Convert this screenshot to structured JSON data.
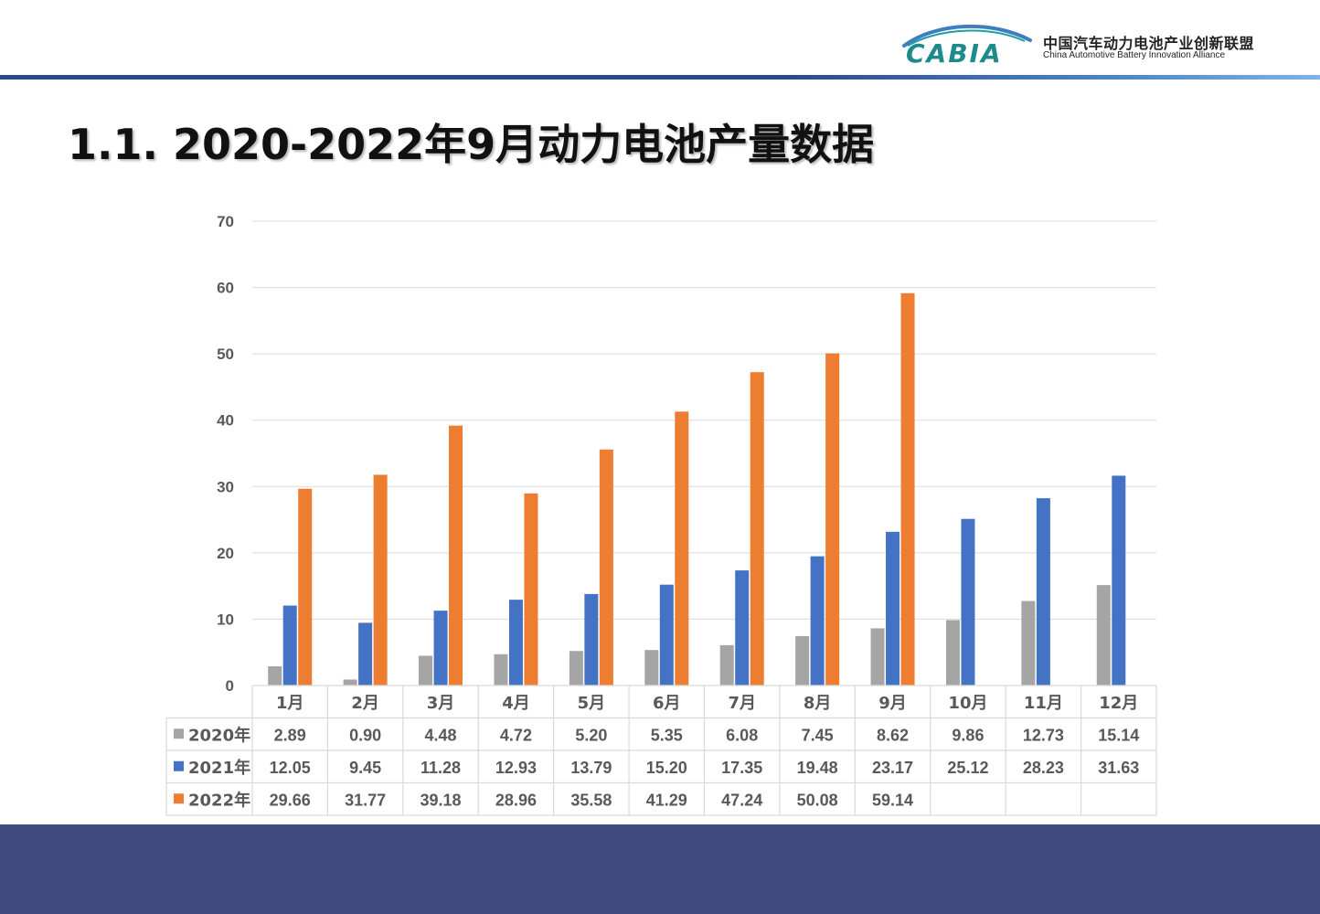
{
  "header": {
    "logo_text": "CABIA",
    "org_name_cn": "中国汽车动力电池产业创新联盟",
    "org_name_en": "China Automotive Battery Innovation Alliance"
  },
  "page": {
    "title": "1.1. 2020-2022年9月动力电池产量数据"
  },
  "chart_data": {
    "type": "bar",
    "categories": [
      "1月",
      "2月",
      "3月",
      "4月",
      "5月",
      "6月",
      "7月",
      "8月",
      "9月",
      "10月",
      "11月",
      "12月"
    ],
    "series": [
      {
        "name": "2020年",
        "color": "#a5a5a5",
        "values": [
          2.89,
          0.9,
          4.48,
          4.72,
          5.2,
          5.35,
          6.08,
          7.45,
          8.62,
          9.86,
          12.73,
          15.14
        ]
      },
      {
        "name": "2021年",
        "color": "#4472c4",
        "values": [
          12.05,
          9.45,
          11.28,
          12.93,
          13.79,
          15.2,
          17.35,
          19.48,
          23.17,
          25.12,
          28.23,
          31.63
        ]
      },
      {
        "name": "2022年",
        "color": "#ed7d31",
        "values": [
          29.66,
          31.77,
          39.18,
          28.96,
          35.58,
          41.29,
          47.24,
          50.08,
          59.14,
          null,
          null,
          null
        ]
      }
    ],
    "value_labels": [
      [
        "2.89",
        "0.90",
        "4.48",
        "4.72",
        "5.20",
        "5.35",
        "6.08",
        "7.45",
        "8.62",
        "9.86",
        "12.73",
        "15.14"
      ],
      [
        "12.05",
        "9.45",
        "11.28",
        "12.93",
        "13.79",
        "15.20",
        "17.35",
        "19.48",
        "23.17",
        "25.12",
        "28.23",
        "31.63"
      ],
      [
        "29.66",
        "31.77",
        "39.18",
        "28.96",
        "35.58",
        "41.29",
        "47.24",
        "50.08",
        "59.14",
        "",
        "",
        ""
      ]
    ],
    "y_ticks": [
      "0",
      "10",
      "20",
      "30",
      "40",
      "50",
      "60",
      "70"
    ],
    "ylim": [
      0,
      70
    ],
    "grid": true,
    "legend": "data-table"
  }
}
